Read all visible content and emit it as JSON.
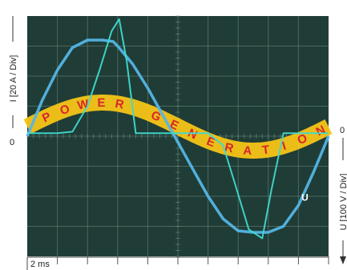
{
  "colors": {
    "screen_background": "#1f3d36",
    "grid": "#6f8a82",
    "current_trace": "#3fd9d0",
    "voltage_trace": "#55b5e6",
    "banner": "#f5c417",
    "banner_text": "#d8262b",
    "axis": "#333333"
  },
  "banner": {
    "text": "POWER GENERATION"
  },
  "chart_data": {
    "type": "line",
    "xlabel": "",
    "scale_label": "2 ms",
    "x_divisions": 10,
    "y_divisions": 8,
    "y_axes": {
      "left": {
        "label": "I [20 A / Div]",
        "zero_label": "0"
      },
      "right": {
        "label": "U [100 V / Div]",
        "zero_label": "0"
      }
    },
    "xlim": [
      0,
      10
    ],
    "ylim": [
      -4,
      4
    ],
    "series": [
      {
        "name": "U",
        "x": [
          0,
          0.5,
          1,
          1.5,
          2,
          2.5,
          2.85,
          3,
          3.5,
          4,
          4.5,
          5,
          5.5,
          6,
          6.5,
          7,
          7.5,
          8,
          8.5,
          9,
          9.5,
          10
        ],
        "y": [
          0,
          1.2,
          2.2,
          2.95,
          3.2,
          3.2,
          3.15,
          3.0,
          2.4,
          1.6,
          0.7,
          -0.2,
          -1.1,
          -2.0,
          -2.75,
          -3.15,
          -3.2,
          -3.2,
          -3.0,
          -2.3,
          -1.2,
          0
        ]
      },
      {
        "name": "I",
        "x": [
          0,
          1,
          1.5,
          2,
          2.4,
          2.8,
          3.05,
          3.3,
          3.6,
          4,
          5,
          6,
          6.5,
          6.9,
          7.35,
          7.8,
          8.1,
          8.5,
          9,
          10
        ],
        "y": [
          0.1,
          0.1,
          0.15,
          1.0,
          2.2,
          3.5,
          3.9,
          2.5,
          0.1,
          0.1,
          0.1,
          0.1,
          -0.3,
          -1.6,
          -3.1,
          -3.4,
          -1.8,
          0.1,
          0.1,
          0.1
        ]
      }
    ],
    "annotations": [
      {
        "text": "U",
        "x": 9.1,
        "y": -2.15
      }
    ],
    "grid": true
  }
}
